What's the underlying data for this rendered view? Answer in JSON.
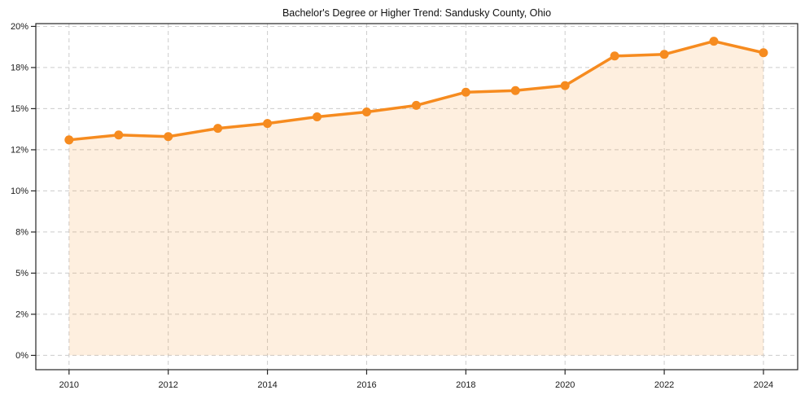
{
  "chart_data": {
    "type": "line",
    "title": "Bachelor's Degree or Higher Trend: Sandusky County, Ohio",
    "x": [
      2010,
      2011,
      2012,
      2013,
      2014,
      2015,
      2016,
      2017,
      2018,
      2019,
      2020,
      2021,
      2022,
      2023,
      2024
    ],
    "values": [
      13.1,
      13.4,
      13.3,
      13.8,
      14.1,
      14.5,
      14.8,
      15.2,
      16.0,
      16.1,
      16.4,
      18.2,
      18.3,
      19.1,
      18.4
    ],
    "xlabel": "",
    "ylabel": "",
    "xlim": [
      2009.33,
      2024.69
    ],
    "ylim": [
      -0.87,
      20.17
    ],
    "x_ticks": {
      "values": [
        2010,
        2012,
        2014,
        2016,
        2018,
        2020,
        2022,
        2024
      ],
      "labels": [
        "2010",
        "2012",
        "2014",
        "2016",
        "2018",
        "2020",
        "2022",
        "2024"
      ]
    },
    "y_ticks": {
      "values": [
        0,
        2.5,
        5,
        7.5,
        10,
        12.5,
        15,
        17.5,
        20
      ],
      "labels": [
        "0%",
        "2%",
        "5%",
        "8%",
        "10%",
        "12%",
        "15%",
        "18%",
        "20%"
      ]
    },
    "grid": true,
    "grid_style": "dashed",
    "legend": false,
    "area_fill": true,
    "area_baseline": 0,
    "marker": "circle",
    "colors": {
      "line": "#F68B1F",
      "fill": "rgba(246,139,31,0.14)",
      "grid": "#cccccc",
      "axis": "#262626",
      "text": "#1a1a1a"
    }
  }
}
